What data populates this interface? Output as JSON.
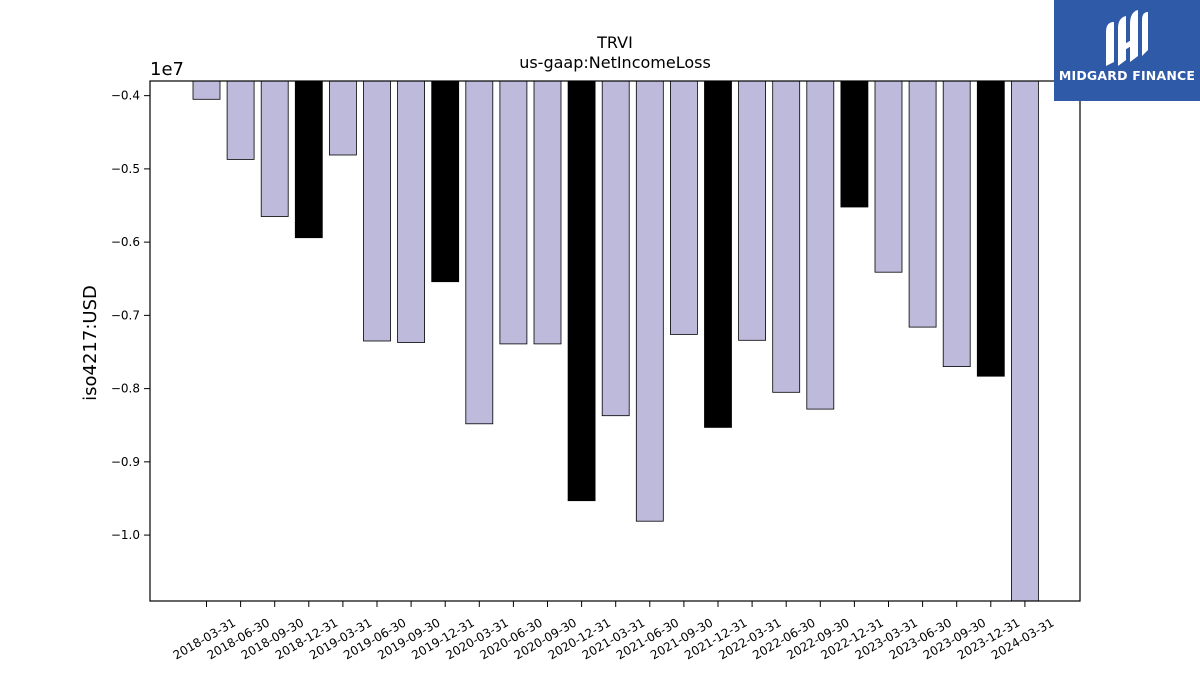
{
  "chart_data": {
    "type": "bar",
    "title": "TRVI",
    "subtitle": "us-gaap:NetIncomeLoss",
    "ylabel": "iso4217:USD",
    "xlabel": "",
    "offset_label": "1e7",
    "scale": 10000000,
    "ylim": [
      -10.9,
      -3.8
    ],
    "baseline": -3.8,
    "yticks": [
      -0.4,
      -0.5,
      -0.6,
      -0.7,
      -0.8,
      -0.9,
      -1.0
    ],
    "ytick_labels": [
      "−0.4",
      "−0.5",
      "−0.6",
      "−0.7",
      "−0.8",
      "−0.9",
      "−1.0"
    ],
    "grid": false,
    "colors": {
      "quarterly": "#bebadb",
      "annual": "#000000",
      "edge": "#000000"
    },
    "categories": [
      "2018-03-31",
      "2018-06-30",
      "2018-09-30",
      "2018-12-31",
      "2019-03-31",
      "2019-06-30",
      "2019-09-30",
      "2019-12-31",
      "2020-03-31",
      "2020-06-30",
      "2020-09-30",
      "2020-12-31",
      "2021-03-31",
      "2021-06-30",
      "2021-09-30",
      "2021-12-31",
      "2022-03-31",
      "2022-06-30",
      "2022-09-30",
      "2022-12-31",
      "2023-03-31",
      "2023-06-30",
      "2023-09-30",
      "2023-12-31",
      "2024-03-31"
    ],
    "values": [
      -4.05,
      -4.87,
      -5.65,
      -5.94,
      -4.81,
      -7.35,
      -7.37,
      -6.54,
      -8.48,
      -7.39,
      -7.39,
      -9.53,
      -8.37,
      -9.81,
      -7.26,
      -8.53,
      -7.34,
      -8.05,
      -8.28,
      -5.52,
      -6.41,
      -7.16,
      -7.7,
      -7.83,
      -10.9
    ],
    "bar_types": [
      "q",
      "q",
      "q",
      "a",
      "q",
      "q",
      "q",
      "a",
      "q",
      "q",
      "q",
      "a",
      "q",
      "q",
      "q",
      "a",
      "q",
      "q",
      "q",
      "a",
      "q",
      "q",
      "q",
      "a",
      "q"
    ]
  },
  "logo": {
    "text": "MIDGARD FINANCE",
    "icon": "midgard-logo-icon",
    "background": "#2f5aa8",
    "color": "#ffffff"
  }
}
